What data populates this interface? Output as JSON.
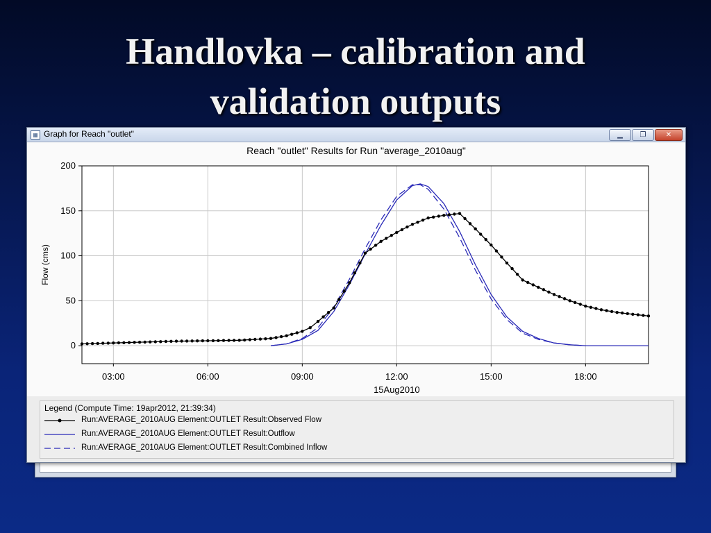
{
  "slide": {
    "title_line1": "Handlovka – calibration and",
    "title_line2": "validation outputs"
  },
  "window": {
    "title": "Graph for Reach \"outlet\"",
    "icon": "graph-window-icon",
    "buttons": [
      "minimize-icon",
      "maximize-icon",
      "close-icon"
    ]
  },
  "legend": {
    "title": "Legend (Compute Time: 19apr2012, 21:39:34)",
    "items": [
      {
        "label": "Run:AVERAGE_2010AUG Element:OUTLET Result:Observed Flow",
        "style": "solid-black-with-dots"
      },
      {
        "label": "Run:AVERAGE_2010AUG Element:OUTLET Result:Outflow",
        "style": "solid-blue"
      },
      {
        "label": "Run:AVERAGE_2010AUG Element:OUTLET Result:Combined Inflow",
        "style": "dashed-blue"
      }
    ]
  },
  "colors": {
    "observed": "#000000",
    "outflow": "#2a2ab8",
    "inflow": "#2a2ab8",
    "grid": "#c8c8c8"
  },
  "chart_data": {
    "type": "line",
    "title": "Reach \"outlet\" Results for Run \"average_2010aug\"",
    "xlabel": "15Aug2010",
    "ylabel": "Flow (cms)",
    "x_unit": "hour of day, 15Aug2010",
    "xlim": [
      2.0,
      20.0
    ],
    "ylim": [
      -20,
      200
    ],
    "x_ticks": [
      3,
      6,
      9,
      12,
      15,
      18
    ],
    "x_tick_labels": [
      "03:00",
      "06:00",
      "09:00",
      "12:00",
      "15:00",
      "18:00"
    ],
    "y_ticks": [
      0,
      50,
      100,
      150,
      200
    ],
    "y_tick_labels": [
      "0",
      "50",
      "100",
      "150",
      "200"
    ],
    "grid": true,
    "legend_placement": "bottom",
    "series": [
      {
        "name": "Run:AVERAGE_2010AUG Element:OUTLET Result:Observed Flow",
        "style": "solid-markers",
        "x": [
          2.0,
          3.0,
          4.0,
          5.0,
          6.0,
          7.0,
          8.0,
          8.5,
          9.0,
          9.25,
          9.5,
          10.0,
          10.5,
          11.0,
          11.5,
          12.0,
          12.5,
          13.0,
          13.5,
          14.0,
          14.5,
          15.0,
          15.5,
          16.0,
          16.5,
          17.0,
          17.5,
          18.0,
          18.5,
          19.0,
          19.5,
          20.0
        ],
        "y": [
          2,
          3,
          4,
          5,
          5.5,
          6,
          8,
          11,
          16,
          20,
          27,
          42,
          70,
          103,
          116,
          126,
          135,
          142,
          145,
          147,
          130,
          112,
          92,
          73,
          65,
          57,
          50,
          44,
          40,
          37,
          35,
          33
        ]
      },
      {
        "name": "Run:AVERAGE_2010AUG Element:OUTLET Result:Outflow",
        "style": "solid",
        "x": [
          8.0,
          8.5,
          9.0,
          9.5,
          10.0,
          10.5,
          11.0,
          11.5,
          12.0,
          12.5,
          12.75,
          13.0,
          13.5,
          14.0,
          14.5,
          15.0,
          15.5,
          16.0,
          16.5,
          17.0,
          17.5,
          18.0,
          19.0,
          20.0
        ],
        "y": [
          0,
          2,
          7,
          17,
          38,
          68,
          102,
          134,
          162,
          178,
          180,
          177,
          158,
          127,
          90,
          57,
          32,
          16,
          8,
          3,
          1,
          0,
          0,
          0
        ]
      },
      {
        "name": "Run:AVERAGE_2010AUG Element:OUTLET Result:Combined Inflow",
        "style": "dashed",
        "x": [
          8.0,
          8.5,
          9.0,
          9.5,
          10.0,
          10.5,
          11.0,
          11.5,
          12.0,
          12.5,
          12.75,
          13.0,
          13.5,
          14.0,
          14.5,
          15.0,
          15.5,
          16.0,
          16.5,
          17.0,
          17.5,
          18.0
        ],
        "y": [
          0,
          2,
          8,
          20,
          43,
          74,
          108,
          140,
          166,
          179,
          179,
          174,
          152,
          120,
          84,
          52,
          29,
          14,
          7,
          3,
          1,
          0
        ]
      }
    ]
  }
}
